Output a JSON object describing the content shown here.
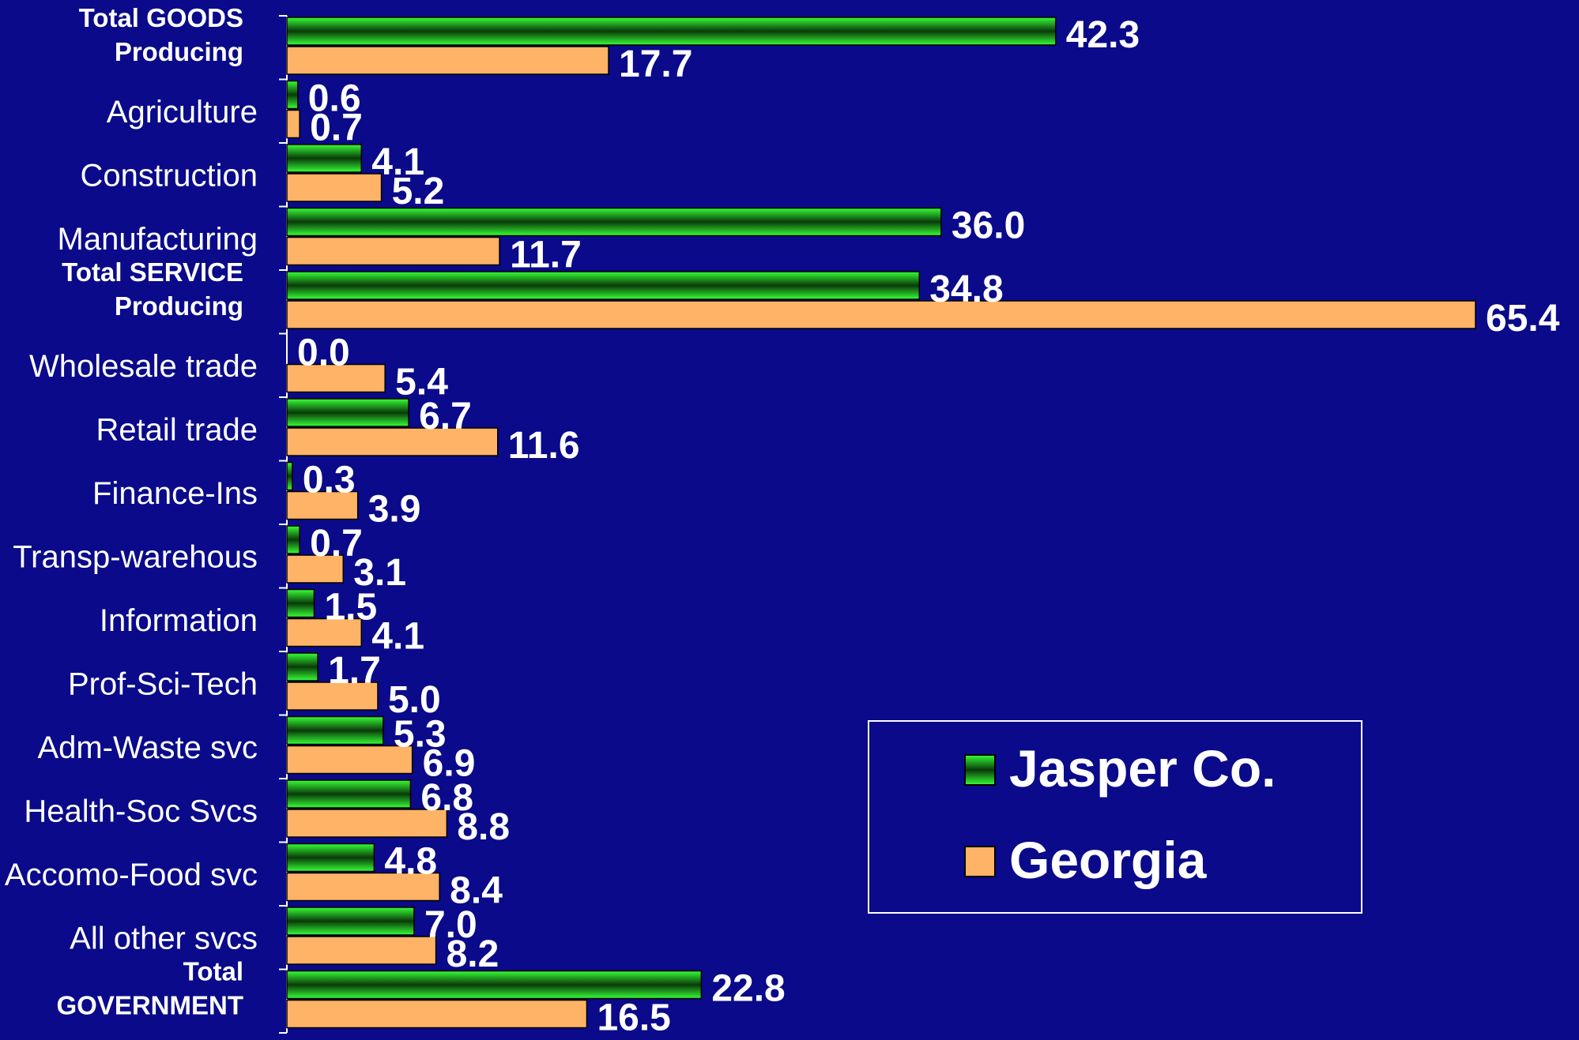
{
  "chart_data": {
    "type": "bar",
    "orientation": "horizontal",
    "categories": [
      "Total GOODS Producing",
      "Agriculture",
      "Construction",
      "Manufacturing",
      "Total SERVICE Producing",
      "Wholesale trade",
      "Retail trade",
      "Finance-Ins",
      "Transp-warehous",
      "Information",
      "Prof-Sci-Tech",
      "Adm-Waste svc",
      "Health-Soc Svcs",
      "Accomo-Food svc",
      "All other svcs",
      "Total GOVERNMENT"
    ],
    "category_label_lines": [
      [
        "Total GOODS",
        "Producing"
      ],
      [
        "Agriculture"
      ],
      [
        "Construction"
      ],
      [
        "Manufacturing"
      ],
      [
        "Total SERVICE",
        "Producing"
      ],
      [
        "Wholesale trade"
      ],
      [
        "Retail trade"
      ],
      [
        "Finance-Ins"
      ],
      [
        "Transp-warehous"
      ],
      [
        "Information"
      ],
      [
        "Prof-Sci-Tech"
      ],
      [
        "Adm-Waste svc"
      ],
      [
        "Health-Soc Svcs"
      ],
      [
        "Accomo-Food svc"
      ],
      [
        "All other svcs"
      ],
      [
        "Total",
        "GOVERNMENT"
      ]
    ],
    "highlight_colors": {
      "Total GOODS Producing": "#19c8a0",
      "Total SERVICE Producing": "#f2a048",
      "Total GOVERNMENT": "#2ad2e6"
    },
    "series": [
      {
        "name": "Jasper Co.",
        "color": "#1ee61e",
        "values": [
          42.3,
          0.6,
          4.1,
          36.0,
          34.8,
          0.0,
          6.7,
          0.3,
          0.7,
          1.5,
          1.7,
          5.3,
          6.8,
          4.8,
          7.0,
          22.8
        ]
      },
      {
        "name": "Georgia",
        "color": "#ffb366",
        "values": [
          17.7,
          0.7,
          5.2,
          11.7,
          65.4,
          5.4,
          11.6,
          3.9,
          3.1,
          4.1,
          5.0,
          6.9,
          8.8,
          8.4,
          8.2,
          16.5
        ]
      }
    ],
    "xlim": [
      0,
      65.4
    ],
    "grid": false,
    "legend_position": "bottom-right",
    "background": "#0a0a8a"
  }
}
